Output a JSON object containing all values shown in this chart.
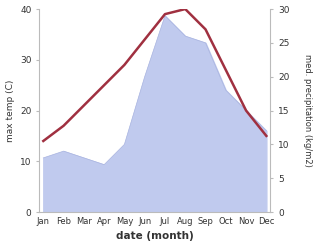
{
  "months": [
    "Jan",
    "Feb",
    "Mar",
    "Apr",
    "May",
    "Jun",
    "Jul",
    "Aug",
    "Sep",
    "Oct",
    "Nov",
    "Dec"
  ],
  "month_x": [
    0,
    1,
    2,
    3,
    4,
    5,
    6,
    7,
    8,
    9,
    10,
    11
  ],
  "temperature": [
    14,
    17,
    21,
    25,
    29,
    34,
    39,
    40,
    36,
    28,
    20,
    15
  ],
  "precipitation": [
    8,
    9,
    8,
    7,
    10,
    20,
    29,
    26,
    25,
    18,
    15,
    12
  ],
  "temp_color": "#a03040",
  "precip_fill_color": "#c0caee",
  "precip_line_color": "#aab5e0",
  "temp_ylim": [
    0,
    40
  ],
  "precip_ylim": [
    0,
    30
  ],
  "xlabel": "date (month)",
  "ylabel_left": "max temp (C)",
  "ylabel_right": "med. precipitation (kg/m2)",
  "bg_color": "#ffffff",
  "temp_linewidth": 1.8
}
